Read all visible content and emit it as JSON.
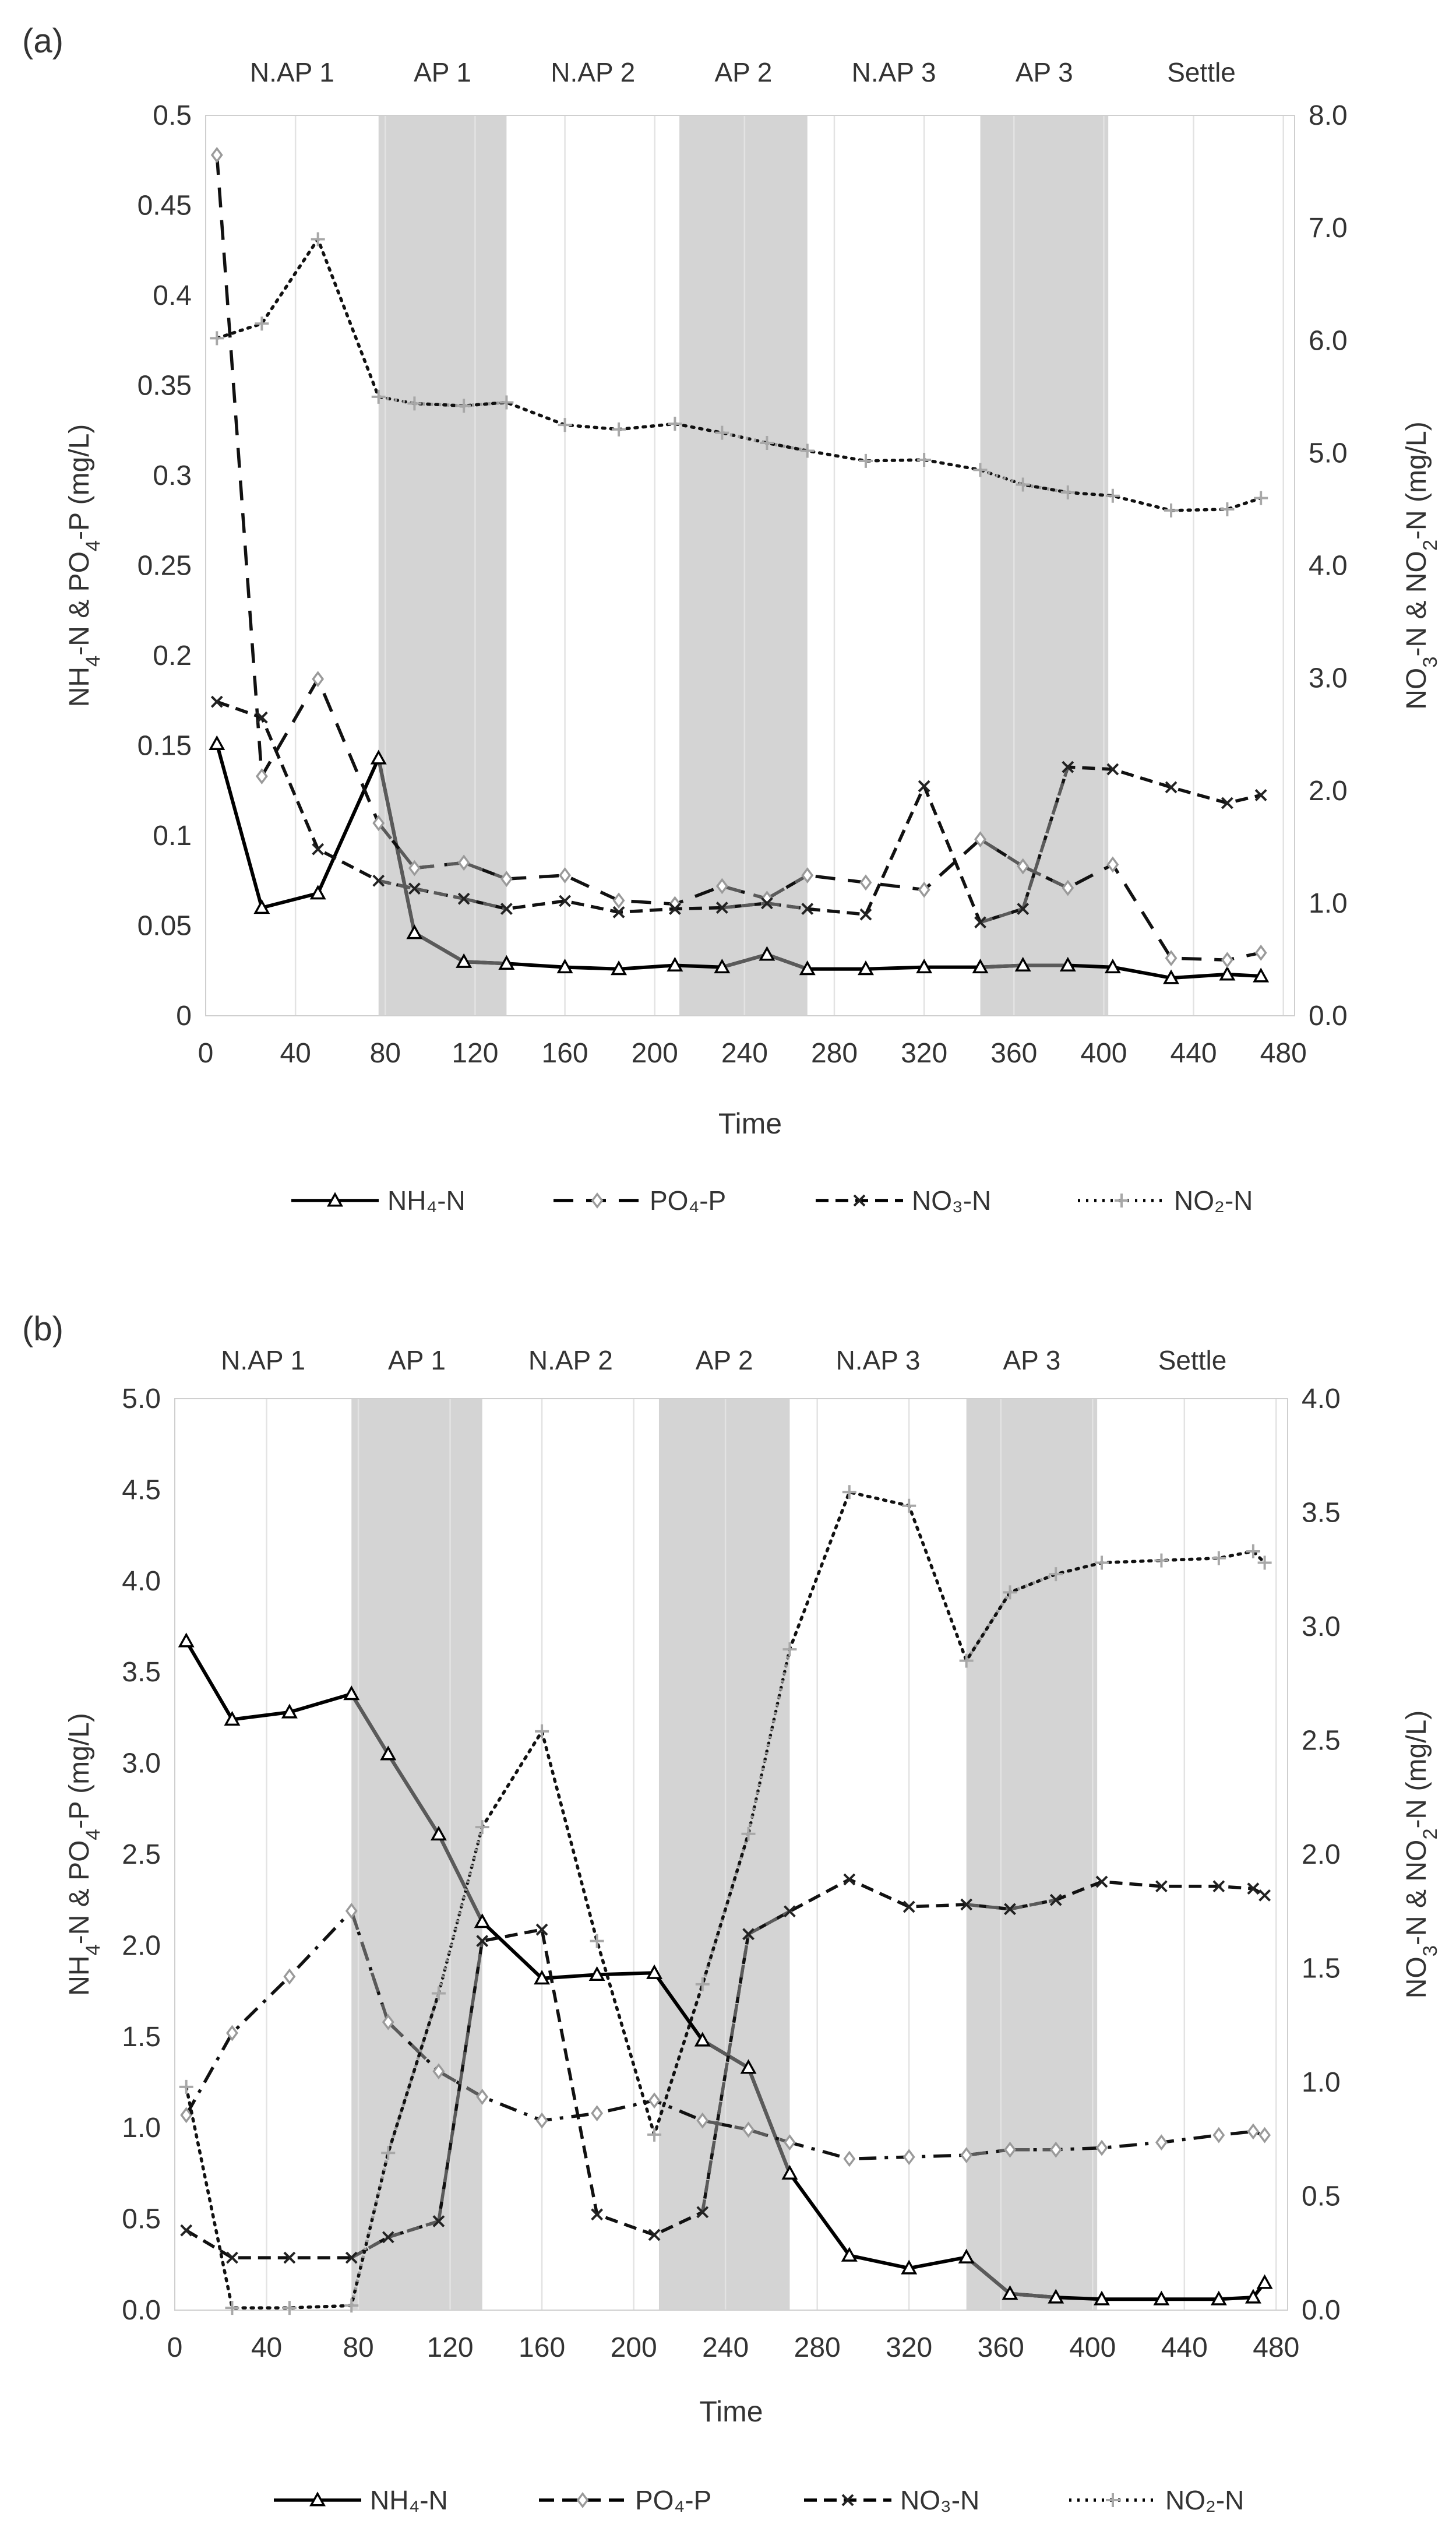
{
  "chart_data": [
    {
      "panel_label": "(a)",
      "type": "line",
      "phases": [
        {
          "label": "N.AP 1",
          "start": 0,
          "end": 77,
          "shaded": false
        },
        {
          "label": "AP 1",
          "start": 77,
          "end": 134,
          "shaded": true
        },
        {
          "label": "N.AP 2",
          "start": 134,
          "end": 211,
          "shaded": false
        },
        {
          "label": "AP 2",
          "start": 211,
          "end": 268,
          "shaded": true
        },
        {
          "label": "N.AP 3",
          "start": 268,
          "end": 345,
          "shaded": false
        },
        {
          "label": "AP 3",
          "start": 345,
          "end": 402,
          "shaded": true
        },
        {
          "label": "Settle",
          "start": 402,
          "end": 485,
          "shaded": false
        }
      ],
      "xlabel": "Time",
      "xlim": [
        0,
        485
      ],
      "xticks": [
        0,
        40,
        80,
        120,
        160,
        200,
        240,
        280,
        320,
        360,
        400,
        440,
        480
      ],
      "xtick_labels": [
        "0",
        "40",
        "80",
        "120",
        "160",
        "200",
        "240",
        "280",
        "320",
        "360",
        "400",
        "440",
        "480"
      ],
      "ylabel_left": "NH4-N & PO4-P (mg/L)",
      "ylabel_right": "NO3-N & NO2-N (mg/L)",
      "ylim_left": [
        0,
        0.5
      ],
      "ylim_right": [
        0,
        8.0
      ],
      "yticks_left": [
        0,
        0.05,
        0.1,
        0.15,
        0.2,
        0.25,
        0.3,
        0.35,
        0.4,
        0.45,
        0.5
      ],
      "ytick_labels_left": [
        "0",
        "0.05",
        "0.1",
        "0.15",
        "0.2",
        "0.25",
        "0.3",
        "0.35",
        "0.4",
        "0.45",
        "0.5"
      ],
      "yticks_right": [
        0,
        1,
        2,
        3,
        4,
        5,
        6,
        7,
        8
      ],
      "ytick_labels_right": [
        "0.0",
        "1.0",
        "2.0",
        "3.0",
        "4.0",
        "5.0",
        "6.0",
        "7.0",
        "8.0"
      ],
      "series": [
        {
          "name": "NH₄-N",
          "axis": "left",
          "style": "solid",
          "marker": "triangle",
          "x": [
            5,
            25,
            50,
            77,
            93,
            115,
            134,
            160,
            184,
            209,
            230,
            250,
            268,
            294,
            320,
            345,
            364,
            384,
            404,
            430,
            455,
            470
          ],
          "values": [
            0.151,
            0.06,
            0.068,
            0.143,
            0.046,
            0.03,
            0.029,
            0.027,
            0.026,
            0.028,
            0.027,
            0.034,
            0.026,
            0.026,
            0.027,
            0.027,
            0.028,
            0.028,
            0.027,
            0.021,
            0.023,
            0.022
          ]
        },
        {
          "name": "PO₄-P",
          "axis": "left",
          "style": "dash",
          "marker": "diamond",
          "x": [
            5,
            25,
            50,
            77,
            93,
            115,
            134,
            160,
            184,
            209,
            230,
            250,
            268,
            294,
            320,
            345,
            364,
            384,
            404,
            430,
            455,
            470
          ],
          "values": [
            0.478,
            0.133,
            0.187,
            0.107,
            0.082,
            0.085,
            0.076,
            0.078,
            0.064,
            0.062,
            0.072,
            0.065,
            0.078,
            0.074,
            0.07,
            0.098,
            0.083,
            0.071,
            0.084,
            0.032,
            0.031,
            0.035
          ]
        },
        {
          "name": "NO₃-N",
          "axis": "right",
          "style": "dashlong",
          "marker": "x",
          "x": [
            5,
            25,
            50,
            77,
            93,
            115,
            134,
            160,
            184,
            209,
            230,
            250,
            268,
            294,
            320,
            345,
            364,
            384,
            404,
            430,
            455,
            470
          ],
          "values": [
            2.79,
            2.65,
            1.48,
            1.2,
            1.13,
            1.04,
            0.95,
            1.02,
            0.92,
            0.95,
            0.96,
            1.0,
            0.95,
            0.9,
            2.04,
            0.83,
            0.95,
            2.21,
            2.19,
            2.03,
            1.89,
            1.96
          ]
        },
        {
          "name": "NO₂-N",
          "axis": "right",
          "style": "dot",
          "marker": "plus",
          "x": [
            5,
            25,
            50,
            77,
            93,
            115,
            134,
            160,
            184,
            209,
            230,
            250,
            268,
            294,
            320,
            345,
            364,
            384,
            404,
            430,
            455,
            470
          ],
          "values": [
            6.02,
            6.15,
            6.9,
            5.5,
            5.44,
            5.42,
            5.45,
            5.25,
            5.21,
            5.26,
            5.18,
            5.09,
            5.02,
            4.93,
            4.94,
            4.85,
            4.72,
            4.65,
            4.62,
            4.49,
            4.5,
            4.6
          ]
        }
      ]
    },
    {
      "panel_label": "(b)",
      "type": "line",
      "phases": [
        {
          "label": "N.AP 1",
          "start": 0,
          "end": 77,
          "shaded": false
        },
        {
          "label": "AP 1",
          "start": 77,
          "end": 134,
          "shaded": true
        },
        {
          "label": "N.AP 2",
          "start": 134,
          "end": 211,
          "shaded": false
        },
        {
          "label": "AP 2",
          "start": 211,
          "end": 268,
          "shaded": true
        },
        {
          "label": "N.AP 3",
          "start": 268,
          "end": 345,
          "shaded": false
        },
        {
          "label": "AP 3",
          "start": 345,
          "end": 402,
          "shaded": true
        },
        {
          "label": "Settle",
          "start": 402,
          "end": 485,
          "shaded": false
        }
      ],
      "xlabel": "Time",
      "xlim": [
        0,
        485
      ],
      "xticks": [
        0,
        40,
        80,
        120,
        160,
        200,
        240,
        280,
        320,
        360,
        400,
        440,
        480
      ],
      "xtick_labels": [
        "0",
        "40",
        "80",
        "120",
        "160",
        "200",
        "240",
        "280",
        "320",
        "360",
        "400",
        "440",
        "480"
      ],
      "ylabel_left": "NH4-N & PO4-P (mg/L)",
      "ylabel_right": "NO3-N & NO2-N (mg/L)",
      "ylim_left": [
        0,
        5.0
      ],
      "ylim_right": [
        0,
        4.0
      ],
      "yticks_left": [
        0,
        0.5,
        1,
        1.5,
        2,
        2.5,
        3,
        3.5,
        4,
        4.5,
        5
      ],
      "ytick_labels_left": [
        "0.0",
        "0.5",
        "1.0",
        "1.5",
        "2.0",
        "2.5",
        "3.0",
        "3.5",
        "4.0",
        "4.5",
        "5.0"
      ],
      "yticks_right": [
        0,
        0.5,
        1,
        1.5,
        2,
        2.5,
        3,
        3.5,
        4
      ],
      "ytick_labels_right": [
        "0.0",
        "0.5",
        "1.0",
        "1.5",
        "2.0",
        "2.5",
        "3.0",
        "3.5",
        "4.0"
      ],
      "series": [
        {
          "name": "NH₄-N",
          "axis": "left",
          "style": "solid",
          "marker": "triangle",
          "x": [
            5,
            25,
            50,
            77,
            93,
            115,
            134,
            160,
            184,
            209,
            230,
            250,
            268,
            294,
            320,
            345,
            364,
            384,
            404,
            430,
            455,
            470,
            475
          ],
          "values": [
            3.67,
            3.24,
            3.28,
            3.38,
            3.05,
            2.61,
            2.13,
            1.82,
            1.84,
            1.85,
            1.48,
            1.33,
            0.75,
            0.3,
            0.23,
            0.29,
            0.09,
            0.07,
            0.06,
            0.06,
            0.06,
            0.07,
            0.15
          ]
        },
        {
          "name": "PO₄-P",
          "axis": "left",
          "style": "dashdot",
          "marker": "diamond",
          "x": [
            5,
            25,
            50,
            77,
            93,
            115,
            134,
            160,
            184,
            209,
            230,
            250,
            268,
            294,
            320,
            345,
            364,
            384,
            404,
            430,
            455,
            470,
            475
          ],
          "values": [
            1.07,
            1.52,
            1.83,
            2.19,
            1.58,
            1.31,
            1.17,
            1.04,
            1.08,
            1.15,
            1.04,
            0.99,
            0.92,
            0.83,
            0.84,
            0.85,
            0.88,
            0.88,
            0.89,
            0.92,
            0.96,
            0.98,
            0.96
          ]
        },
        {
          "name": "NO₃-N",
          "axis": "right",
          "style": "dashlong",
          "marker": "x",
          "x": [
            5,
            25,
            50,
            77,
            93,
            115,
            134,
            160,
            184,
            209,
            230,
            250,
            268,
            294,
            320,
            345,
            364,
            384,
            404,
            430,
            455,
            470,
            475
          ],
          "values": [
            0.35,
            0.23,
            0.23,
            0.23,
            0.32,
            0.39,
            1.62,
            1.67,
            0.42,
            0.33,
            0.43,
            1.65,
            1.75,
            1.89,
            1.77,
            1.78,
            1.76,
            1.8,
            1.88,
            1.86,
            1.86,
            1.85,
            1.82
          ]
        },
        {
          "name": "NO₂-N",
          "axis": "right",
          "style": "dot",
          "marker": "plus",
          "x": [
            5,
            25,
            50,
            77,
            93,
            115,
            134,
            160,
            184,
            209,
            230,
            250,
            268,
            294,
            320,
            345,
            364,
            384,
            404,
            430,
            455,
            470,
            475
          ],
          "values": [
            0.98,
            0.01,
            0.01,
            0.02,
            0.69,
            1.39,
            2.12,
            2.54,
            1.62,
            0.77,
            1.43,
            2.09,
            2.9,
            3.59,
            3.53,
            2.85,
            3.15,
            3.23,
            3.28,
            3.29,
            3.3,
            3.33,
            3.28
          ]
        }
      ]
    }
  ],
  "legends": [
    {
      "items": [
        "NH₄-N",
        "PO₄-P",
        "NO₃-N",
        "NO₂-N"
      ]
    },
    {
      "items": [
        "NH₄-N",
        "PO₄-P",
        "NO₃-N",
        "NO₂-N"
      ]
    }
  ]
}
